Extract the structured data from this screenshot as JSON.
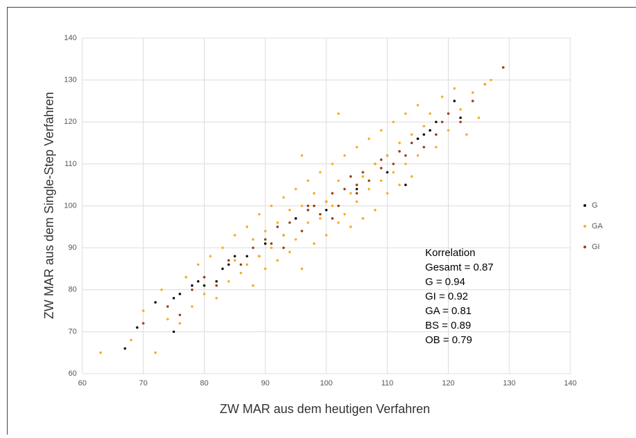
{
  "chart_data": {
    "type": "scatter",
    "xlabel": "ZW MAR aus dem heutigen Verfahren",
    "ylabel": "ZW MAR aus dem Single-Step Verfahren",
    "xlim": [
      60,
      140
    ],
    "ylim": [
      60,
      140
    ],
    "xticks": [
      60,
      70,
      80,
      90,
      100,
      110,
      120,
      130,
      140
    ],
    "yticks": [
      60,
      70,
      80,
      90,
      100,
      110,
      120,
      130,
      140
    ],
    "grid": true,
    "legend": "right",
    "annotation": [
      "Korrelation",
      "Gesamt = 0.87",
      "G = 0.94",
      "GI = 0.92",
      "GA = 0.81",
      "BS = 0.89",
      "OB = 0.79"
    ],
    "series": [
      {
        "name": "G",
        "color": "#111111",
        "x": [
          67,
          69,
          72,
          75,
          75,
          76,
          78,
          79,
          80,
          82,
          83,
          84,
          85,
          87,
          90,
          95,
          100,
          105,
          110,
          113,
          115,
          116,
          117,
          118,
          121,
          122
        ],
        "y": [
          66,
          71,
          77,
          70,
          78,
          79,
          81,
          82,
          81,
          82,
          85,
          86,
          88,
          88,
          91,
          97,
          99,
          104,
          108,
          105,
          116,
          117,
          118,
          120,
          125,
          121
        ]
      },
      {
        "name": "GA",
        "color": "#f5ae22",
        "x": [
          63,
          68,
          70,
          72,
          73,
          74,
          76,
          77,
          78,
          79,
          80,
          81,
          82,
          83,
          84,
          85,
          85,
          86,
          87,
          87,
          88,
          88,
          89,
          89,
          90,
          90,
          91,
          91,
          92,
          92,
          93,
          93,
          94,
          94,
          95,
          95,
          96,
          96,
          97,
          97,
          98,
          98,
          99,
          99,
          100,
          100,
          101,
          101,
          102,
          102,
          103,
          103,
          104,
          104,
          105,
          105,
          106,
          106,
          107,
          107,
          108,
          108,
          109,
          109,
          110,
          110,
          111,
          111,
          112,
          112,
          113,
          113,
          114,
          114,
          115,
          115,
          116,
          117,
          118,
          119,
          120,
          121,
          122,
          123,
          124,
          125,
          126,
          127,
          102,
          96
        ],
        "y": [
          65,
          68,
          75,
          65,
          80,
          73,
          72,
          83,
          76,
          86,
          79,
          88,
          78,
          90,
          82,
          87,
          93,
          84,
          95,
          86,
          92,
          81,
          98,
          88,
          94,
          85,
          100,
          90,
          96,
          87,
          102,
          93,
          99,
          89,
          104,
          92,
          100,
          85,
          106,
          96,
          103,
          91,
          108,
          97,
          101,
          93,
          110,
          100,
          106,
          96,
          112,
          98,
          103,
          95,
          114,
          101,
          107,
          97,
          116,
          104,
          110,
          99,
          118,
          106,
          112,
          103,
          120,
          108,
          115,
          105,
          122,
          110,
          117,
          107,
          124,
          112,
          119,
          122,
          114,
          126,
          118,
          128,
          123,
          117,
          127,
          121,
          129,
          130,
          122,
          112
        ]
      },
      {
        "name": "GI",
        "color": "#9e3d10",
        "x": [
          70,
          74,
          76,
          78,
          80,
          82,
          84,
          86,
          88,
          89,
          90,
          91,
          92,
          93,
          94,
          95,
          96,
          97,
          98,
          99,
          100,
          101,
          102,
          103,
          104,
          105,
          106,
          107,
          108,
          109,
          110,
          111,
          112,
          113,
          114,
          115,
          116,
          117,
          118,
          119,
          120,
          122,
          124,
          126,
          129,
          93,
          97,
          101,
          105,
          109
        ],
        "y": [
          72,
          76,
          74,
          80,
          83,
          81,
          87,
          86,
          90,
          88,
          92,
          91,
          95,
          93,
          96,
          97,
          94,
          99,
          100,
          98,
          101,
          103,
          100,
          104,
          107,
          105,
          108,
          106,
          110,
          109,
          112,
          110,
          113,
          112,
          115,
          116,
          114,
          118,
          117,
          120,
          122,
          120,
          125,
          129,
          133,
          90,
          100,
          97,
          103,
          111
        ]
      }
    ]
  }
}
